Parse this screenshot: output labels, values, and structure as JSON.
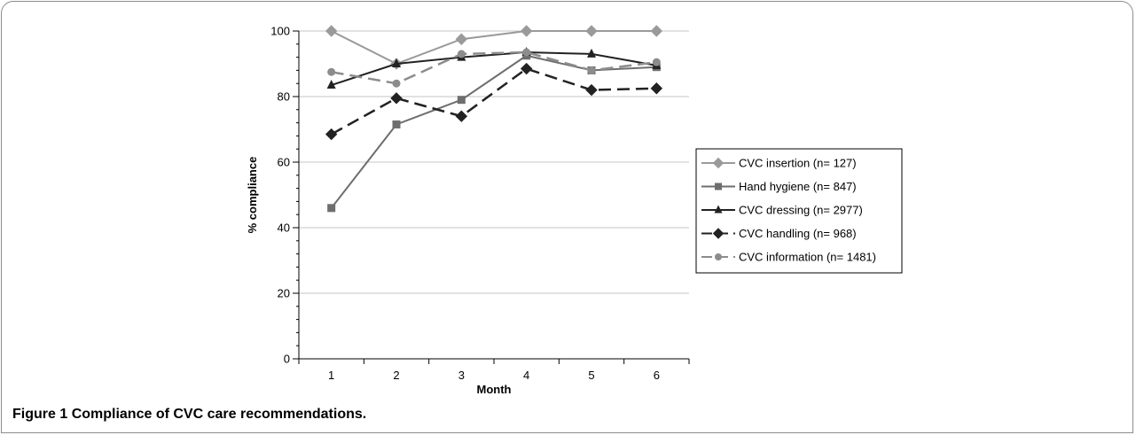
{
  "caption": {
    "label": "Figure 1",
    "text": "Compliance of CVC care recommendations."
  },
  "chart_data": {
    "type": "line",
    "xlabel": "Month",
    "ylabel": "% compliance",
    "x": [
      1,
      2,
      3,
      4,
      5,
      6
    ],
    "xticklabels": [
      "1",
      "2",
      "3",
      "4",
      "5",
      "6"
    ],
    "ylim": [
      0,
      100
    ],
    "yticks": [
      0,
      20,
      40,
      60,
      80,
      100
    ],
    "grid": true,
    "legend_position": "right",
    "series": [
      {
        "name": "CVC insertion (n= 127)",
        "values": [
          100,
          90,
          97.5,
          100,
          100,
          100
        ],
        "color": "#9a9a9a",
        "marker": "diamond",
        "style": "solid"
      },
      {
        "name": "Hand hygiene (n= 847)",
        "values": [
          46,
          71.5,
          79,
          92.5,
          88,
          89
        ],
        "color": "#6e6e6e",
        "marker": "square",
        "style": "solid"
      },
      {
        "name": "CVC dressing (n= 2977)",
        "values": [
          83.5,
          90,
          92,
          93.5,
          93,
          89.5
        ],
        "color": "#222222",
        "marker": "triangle",
        "style": "solid"
      },
      {
        "name": "CVC handling (n= 968)",
        "values": [
          68.5,
          79.5,
          74,
          88.5,
          82,
          82.5
        ],
        "color": "#222222",
        "marker": "diamond",
        "style": "dashed"
      },
      {
        "name": "CVC information (n= 1481)",
        "values": [
          87.5,
          84,
          93,
          93.5,
          88,
          90.5
        ],
        "color": "#8c8c8c",
        "marker": "circle",
        "style": "dashed"
      }
    ]
  }
}
